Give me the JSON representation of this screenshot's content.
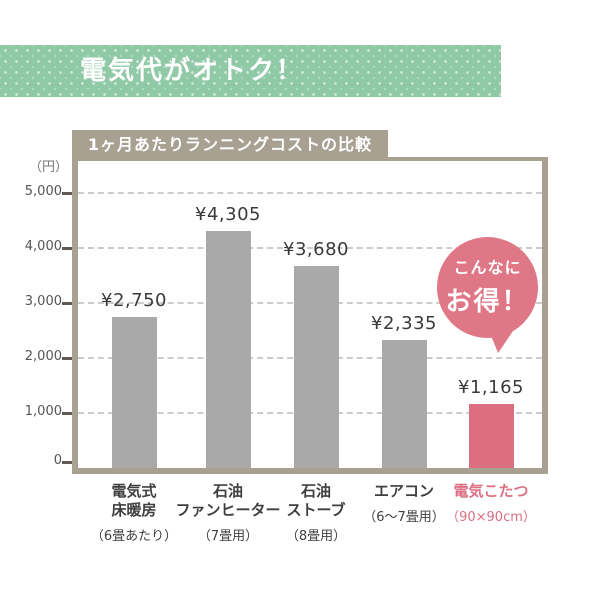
{
  "header": {
    "title": "電気代がオトク！"
  },
  "chart": {
    "title": "1ヶ月あたりランニングコストの比較",
    "unit_label": "（円）"
  },
  "badge": {
    "line1": "こんなに",
    "line2": "お得！"
  },
  "colors": {
    "header_green": "#8fc9a6",
    "frame_taupe": "#a8a192",
    "bar_gray": "#a9a9a9",
    "accent_pink": "#dc6e81",
    "badge_pink": "#df7787",
    "gridline_gray": "#cccccc",
    "text_dark": "#3a3a3a"
  },
  "chart_data": {
    "type": "bar",
    "title": "1ヶ月あたりランニングコストの比較",
    "xlabel": "",
    "ylabel": "円",
    "ylim": [
      0,
      5000
    ],
    "grid": "dashed-horizontal",
    "legend": false,
    "y_axis": {
      "unit_label": "（円）",
      "ticks": [
        0,
        1000,
        2000,
        3000,
        4000,
        5000
      ],
      "tick_labels": [
        "0",
        "1,000",
        "2,000",
        "3,000",
        "4,000",
        "5,000"
      ]
    },
    "categories": [
      "電気式床暖房",
      "石油ファンヒーター",
      "石油ストーブ",
      "エアコン",
      "電気こたつ"
    ],
    "values": [
      2750,
      4305,
      3680,
      2335,
      1165
    ],
    "items": [
      {
        "name_lines": [
          "電気式",
          "床暖房"
        ],
        "size_note": "（6畳あたり）",
        "value": 2750,
        "value_label": "¥2,750",
        "highlight": false
      },
      {
        "name_lines": [
          "石油",
          "ファンヒーター"
        ],
        "size_note": "（7畳用）",
        "value": 4305,
        "value_label": "¥4,305",
        "highlight": false
      },
      {
        "name_lines": [
          "石油",
          "ストーブ"
        ],
        "size_note": "（8畳用）",
        "value": 3680,
        "value_label": "¥3,680",
        "highlight": false
      },
      {
        "name_lines": [
          "エアコン"
        ],
        "size_note": "（6〜7畳用）",
        "value": 2335,
        "value_label": "¥2,335",
        "highlight": false
      },
      {
        "name_lines": [
          "電気こたつ"
        ],
        "size_note": "（90×90cm）",
        "value": 1165,
        "value_label": "¥1,165",
        "highlight": true
      }
    ]
  }
}
